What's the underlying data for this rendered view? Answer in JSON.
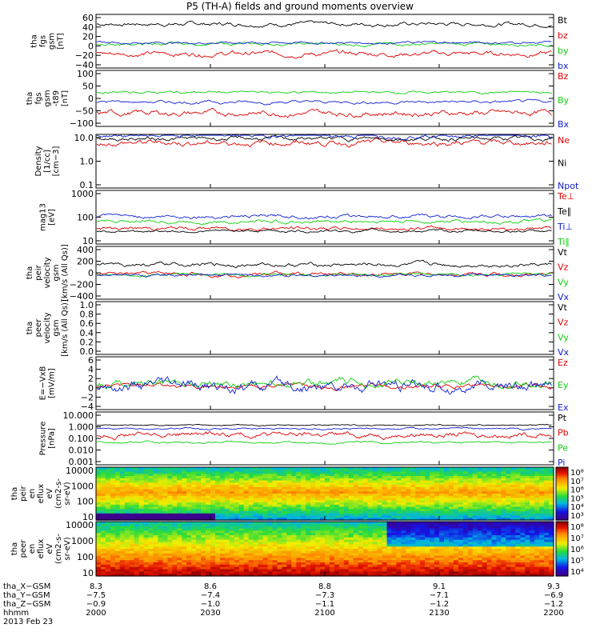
{
  "title": "P5 (TH-A) fields and ground moments overview",
  "colors": {
    "black": "#000000",
    "red": "#e00000",
    "green": "#10d010",
    "blue": "#1020d0"
  },
  "chart_data": [
    {
      "id": "fgs_full",
      "type": "line",
      "ylabel": [
        "tha",
        "fgs",
        "gsm",
        "[nT]"
      ],
      "yticks": [
        "60",
        "40",
        "20",
        "0",
        "−20",
        "−40"
      ],
      "ylim": [
        -50,
        62
      ],
      "series": [
        {
          "name": "Bt",
          "color": "black",
          "base": 42,
          "amp": 8
        },
        {
          "name": "bz",
          "color": "red",
          "base": -20,
          "amp": 10
        },
        {
          "name": "by",
          "color": "green",
          "base": 0,
          "amp": 6
        },
        {
          "name": "bx",
          "color": "blue",
          "base": 3,
          "amp": 5
        }
      ]
    },
    {
      "id": "fgs_dc",
      "type": "line",
      "ylabel": [
        "tha",
        "fgs",
        "gsm",
        "-t89",
        "[nT]"
      ],
      "yticks": [
        "100",
        "50",
        "0",
        "−50",
        "−100"
      ],
      "ylim": [
        -125,
        105
      ],
      "series": [
        {
          "name": "Bz",
          "color": "red",
          "base": -70,
          "amp": 22
        },
        {
          "name": "By",
          "color": "green",
          "base": 15,
          "amp": 10
        },
        {
          "name": "Bx",
          "color": "blue",
          "base": -25,
          "amp": 12
        }
      ]
    },
    {
      "id": "density",
      "type": "line",
      "ylabel": [
        "Density",
        "[1/cc]",
        "[cm−3]"
      ],
      "yticks": [
        "10.0",
        "1.0",
        "0.1"
      ],
      "ylim": [
        -1.1,
        1.45
      ],
      "log": true,
      "series": [
        {
          "name": "Ne",
          "color": "red",
          "base": 1.05,
          "amp": 0.25
        },
        {
          "name": "Ni",
          "color": "black",
          "base": 1.25,
          "amp": 0.18
        },
        {
          "name": "Npot",
          "color": "blue",
          "base": 1.4,
          "amp": 0.2
        }
      ]
    },
    {
      "id": "temperature",
      "type": "line",
      "ylabel": [
        "mag13",
        "[eV]"
      ],
      "yticks": [
        "1000",
        "100",
        "10"
      ],
      "ylim": [
        0.9,
        4.0
      ],
      "log": true,
      "series": [
        {
          "name": "Te⊥",
          "color": "red",
          "base": 1.8,
          "amp": 0.2
        },
        {
          "name": "Te∥",
          "color": "black",
          "base": 1.65,
          "amp": 0.15
        },
        {
          "name": "Ti⊥",
          "color": "blue",
          "base": 2.5,
          "amp": 0.2
        },
        {
          "name": "Ti∥",
          "color": "green",
          "base": 2.2,
          "amp": 0.2
        }
      ]
    },
    {
      "id": "peir_velocity",
      "type": "line",
      "ylabel": [
        "tha",
        "peir",
        "velocity",
        "gsm",
        "[km/s (All Qs)]"
      ],
      "yticks": [
        "400",
        "200",
        "0",
        "−200",
        "−400"
      ],
      "ylim": [
        -420,
        420
      ],
      "series": [
        {
          "name": "Vt",
          "color": "black",
          "base": 130,
          "amp": 60
        },
        {
          "name": "Vz",
          "color": "red",
          "base": -20,
          "amp": 60
        },
        {
          "name": "Vy",
          "color": "green",
          "base": -30,
          "amp": 40
        },
        {
          "name": "Vx",
          "color": "blue",
          "base": -40,
          "amp": 40
        }
      ]
    },
    {
      "id": "peer_velocity",
      "type": "line",
      "ylabel": [
        "tha",
        "peer",
        "velocity",
        "gsm",
        "[km/s (All Qs)]"
      ],
      "yticks": [
        "1.0",
        "0.8",
        "0.6",
        "0.4",
        "0.2",
        "0.0"
      ],
      "ylim": [
        0,
        1
      ],
      "series": [
        {
          "name": "Vt",
          "color": "black"
        },
        {
          "name": "Vz",
          "color": "red"
        },
        {
          "name": "Vy",
          "color": "green"
        },
        {
          "name": "Vx",
          "color": "blue"
        }
      ]
    },
    {
      "id": "efield",
      "type": "line",
      "ylabel": [
        "E=−VxB",
        "[mV/m]"
      ],
      "yticks": [
        "6",
        "4",
        "2",
        "0",
        "−2",
        "−4"
      ],
      "ylim": [
        -4.6,
        6.5
      ],
      "series": [
        {
          "name": "Ez",
          "color": "red",
          "base": 0.3,
          "amp": 0.9
        },
        {
          "name": "Ey",
          "color": "green",
          "base": 1.0,
          "amp": 1.6
        },
        {
          "name": "Ex",
          "color": "blue",
          "base": 0.2,
          "amp": 2.4
        }
      ]
    },
    {
      "id": "pressure",
      "type": "line",
      "ylabel": [
        "Pressure",
        "[nPa]"
      ],
      "yticks": [
        "10.000",
        "1.000",
        "0.100",
        "0.010",
        "0.001"
      ],
      "ylim": [
        -3,
        1
      ],
      "log": true,
      "series": [
        {
          "name": "Pt",
          "color": "black",
          "base": 0.0,
          "amp": 0.1
        },
        {
          "name": "Pb",
          "color": "red",
          "base": -0.7,
          "amp": 0.4
        },
        {
          "name": "Pe",
          "color": "green",
          "base": -1.3,
          "amp": 0.15
        },
        {
          "name": "Pi",
          "color": "blue",
          "base": -0.25,
          "amp": 0.12
        }
      ]
    },
    {
      "id": "peir_eflux",
      "type": "heatmap",
      "ylabel": [
        "tha",
        "peir",
        "en",
        "eflux",
        "eV",
        "(cm2-s-",
        "sr-eV)"
      ],
      "yticks": [
        "10000",
        "1000",
        "100",
        "10"
      ],
      "ylim": [
        0.9,
        4.35
      ],
      "colorbar": {
        "ticks": [
          "10⁸",
          "10⁷",
          "10⁶",
          "10⁵",
          "10⁴",
          "10³"
        ],
        "range": [
          3,
          8
        ]
      }
    },
    {
      "id": "peer_eflux",
      "type": "heatmap",
      "ylabel": [
        "tha",
        "peer",
        "en",
        "eflux",
        "eV",
        "(cm2-s-",
        "sr-eV)"
      ],
      "yticks": [
        "10000",
        "1000",
        "100",
        "10"
      ],
      "ylim": [
        0.9,
        4.35
      ],
      "colorbar": {
        "ticks": [
          "10⁸",
          "10⁷",
          "10⁶",
          "10⁵",
          "10⁴"
        ],
        "range": [
          4,
          8
        ]
      }
    }
  ],
  "xaxis": {
    "ticks": [
      "2000",
      "2030",
      "2100",
      "2130",
      "2200"
    ],
    "rows": [
      {
        "label": "tha_X−GSM",
        "values": [
          "8.3",
          "8.6",
          "8.8",
          "9.1",
          "9.3"
        ]
      },
      {
        "label": "tha_Y−GSM",
        "values": [
          "−7.5",
          "−7.4",
          "−7.3",
          "−7.1",
          "−6.9"
        ]
      },
      {
        "label": "tha_Z−GSM",
        "values": [
          "−0.9",
          "−1.0",
          "−1.1",
          "−1.2",
          "−1.2"
        ]
      },
      {
        "label": "hhmm",
        "values": [
          "2000",
          "2030",
          "2100",
          "2130",
          "2200"
        ]
      }
    ],
    "date": "2013 Feb 23"
  }
}
